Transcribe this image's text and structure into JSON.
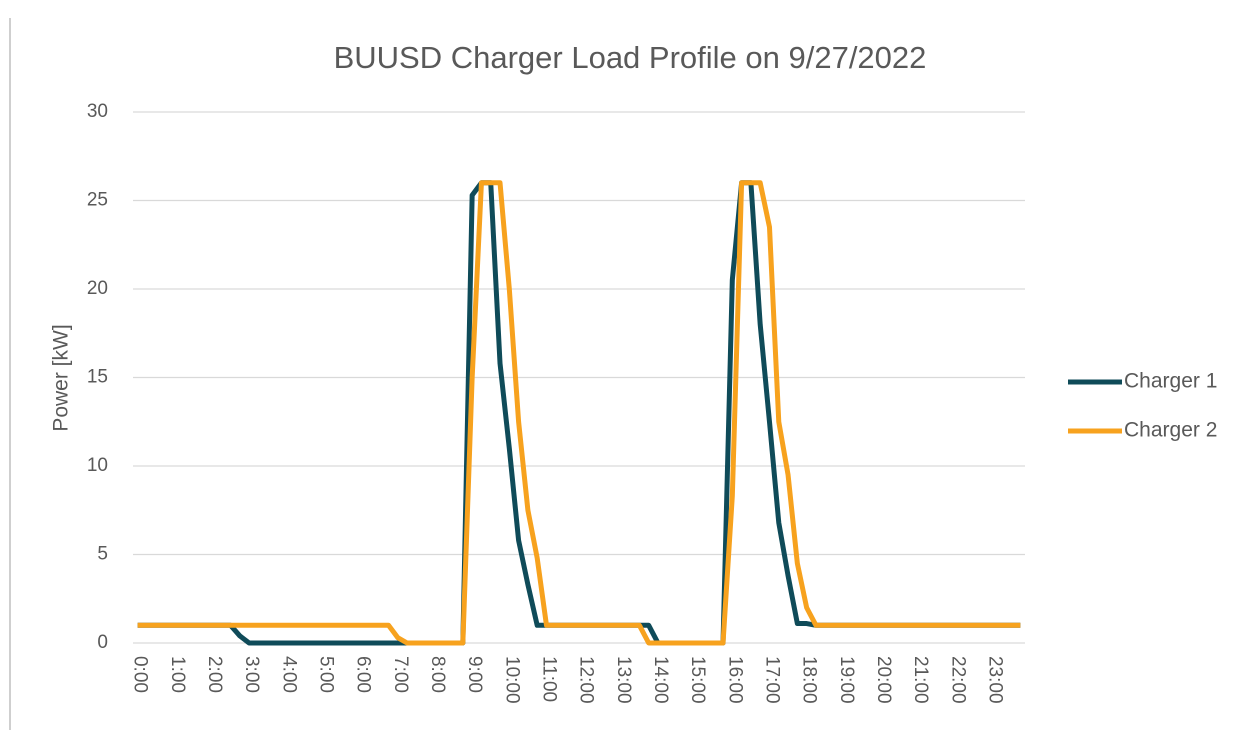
{
  "chart_data": {
    "type": "line",
    "title": "BUUSD Charger Load Profile on 9/27/2022",
    "y_label": "Power [kW]",
    "categories": [
      "0:00",
      null,
      null,
      null,
      "1:00",
      null,
      null,
      null,
      "2:00",
      null,
      null,
      null,
      "3:00",
      null,
      null,
      null,
      "4:00",
      null,
      null,
      null,
      "5:00",
      null,
      null,
      null,
      "6:00",
      null,
      null,
      null,
      "7:00",
      null,
      null,
      null,
      "8:00",
      null,
      null,
      null,
      "9:00",
      null,
      null,
      null,
      "10:00",
      null,
      null,
      null,
      "11:00",
      null,
      null,
      null,
      "12:00",
      null,
      null,
      null,
      "13:00",
      null,
      null,
      null,
      "14:00",
      null,
      null,
      null,
      "15:00",
      null,
      null,
      null,
      "16:00",
      null,
      null,
      null,
      "17:00",
      null,
      null,
      null,
      "18:00",
      null,
      null,
      null,
      "19:00",
      null,
      null,
      null,
      "20:00",
      null,
      null,
      null,
      "21:00",
      null,
      null,
      null,
      "22:00",
      null,
      null,
      null,
      "23:00",
      null,
      null,
      null
    ],
    "series": [
      {
        "name": "Charger 1",
        "color": "#0f4b59",
        "values": [
          1,
          1,
          1,
          1,
          1,
          1,
          1,
          1,
          1,
          1,
          1,
          0.4,
          0,
          0,
          0,
          0,
          0,
          0,
          0,
          0,
          0,
          0,
          0,
          0,
          0,
          0,
          0,
          0,
          0,
          0,
          0,
          0,
          0,
          0,
          0,
          0,
          25.3,
          26,
          26,
          15.8,
          11,
          5.8,
          3.3,
          1,
          1,
          1,
          1,
          1,
          1,
          1,
          1,
          1,
          1,
          1,
          1,
          1,
          0,
          0,
          0,
          0,
          0,
          0,
          0,
          0,
          20.5,
          26,
          26,
          18,
          12.5,
          6.8,
          3.8,
          1.1,
          1.1,
          1,
          1,
          1,
          1,
          1,
          1,
          1,
          1,
          1,
          1,
          1,
          1,
          1,
          1,
          1,
          1,
          1,
          1,
          1,
          1,
          1,
          1,
          1
        ]
      },
      {
        "name": "Charger 2",
        "color": "#f7a21e",
        "values": [
          1,
          1,
          1,
          1,
          1,
          1,
          1,
          1,
          1,
          1,
          1,
          1,
          1,
          1,
          1,
          1,
          1,
          1,
          1,
          1,
          1,
          1,
          1,
          1,
          1,
          1,
          1,
          1,
          0.3,
          0,
          0,
          0,
          0,
          0,
          0,
          0,
          15,
          26,
          26,
          26,
          20,
          12.5,
          7.5,
          4.8,
          1,
          1,
          1,
          1,
          1,
          1,
          1,
          1,
          1,
          1,
          1,
          0,
          0,
          0,
          0,
          0,
          0,
          0,
          0,
          0,
          8.3,
          26,
          26,
          26,
          23.5,
          12.5,
          9.5,
          4.5,
          2,
          1,
          1,
          1,
          1,
          1,
          1,
          1,
          1,
          1,
          1,
          1,
          1,
          1,
          1,
          1,
          1,
          1,
          1,
          1,
          1,
          1,
          1,
          1
        ]
      }
    ],
    "ylim": [
      0,
      30
    ],
    "yticks": [
      0,
      5,
      10,
      15,
      20,
      25,
      30
    ],
    "grid": true,
    "legend": "right"
  }
}
